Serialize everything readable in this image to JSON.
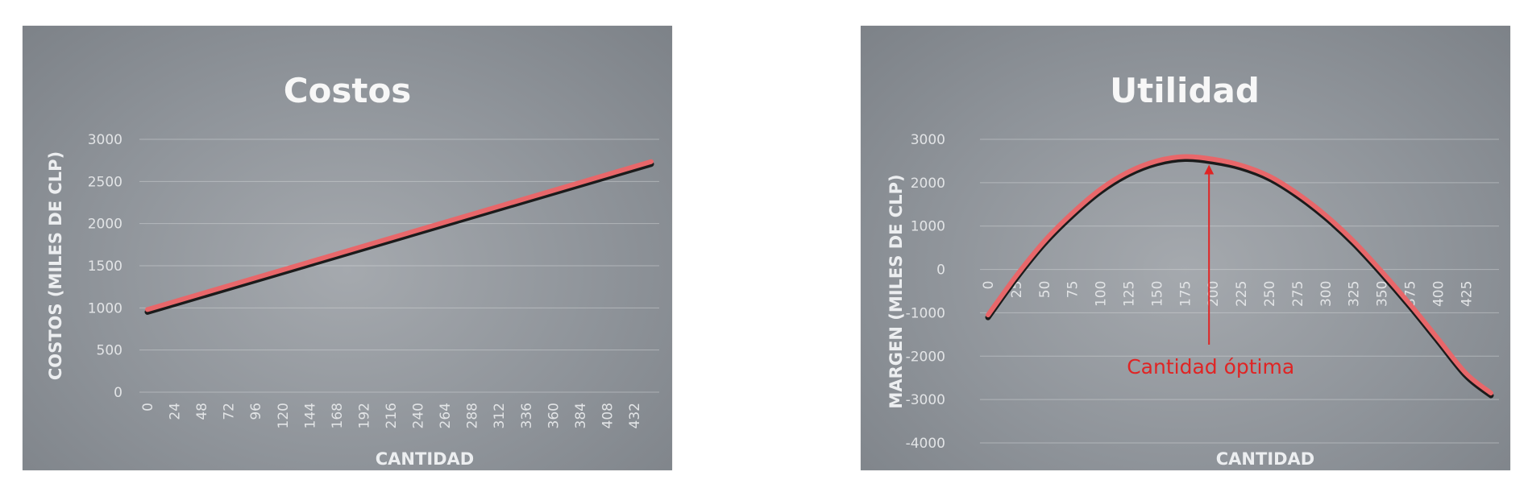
{
  "chart_data": [
    {
      "type": "line",
      "title": "Costos",
      "xlabel": "CANTIDAD",
      "ylabel": "COSTOS (MILES DE CLP)",
      "ylim": [
        0,
        3000
      ],
      "yticks": [
        0,
        500,
        1000,
        1500,
        2000,
        2500,
        3000
      ],
      "xlim": [
        0,
        447
      ],
      "xticks": [
        0,
        24,
        48,
        72,
        96,
        120,
        144,
        168,
        192,
        216,
        240,
        264,
        288,
        312,
        336,
        360,
        384,
        408,
        432
      ],
      "grid": true,
      "series": [
        {
          "x": [
            0,
            447
          ],
          "y": [
            980,
            2735
          ]
        }
      ],
      "line_color": "#e8676a"
    },
    {
      "type": "line",
      "title": "Utilidad",
      "xlabel": "CANTIDAD",
      "ylabel": "MARGEN (MILES DE CLP)",
      "ylim": [
        -4000,
        3000
      ],
      "yticks": [
        -4000,
        -3000,
        -2000,
        -1000,
        0,
        1000,
        2000,
        3000
      ],
      "xlim": [
        0,
        447
      ],
      "xticks": [
        0,
        25,
        50,
        75,
        100,
        125,
        150,
        175,
        200,
        225,
        250,
        275,
        300,
        325,
        350,
        375,
        400,
        425
      ],
      "grid": true,
      "series": [
        {
          "x": [
            0,
            25,
            50,
            75,
            100,
            125,
            150,
            175,
            200,
            225,
            250,
            275,
            300,
            325,
            350,
            375,
            400,
            425,
            447
          ],
          "y": [
            -1050,
            -150,
            650,
            1300,
            1850,
            2250,
            2500,
            2600,
            2540,
            2400,
            2150,
            1750,
            1250,
            650,
            -50,
            -800,
            -1600,
            -2400,
            -2850
          ]
        }
      ],
      "line_color": "#e8676a",
      "annotation": {
        "text": "Cantidad óptima",
        "x": 200,
        "color": "#e02424"
      }
    }
  ]
}
